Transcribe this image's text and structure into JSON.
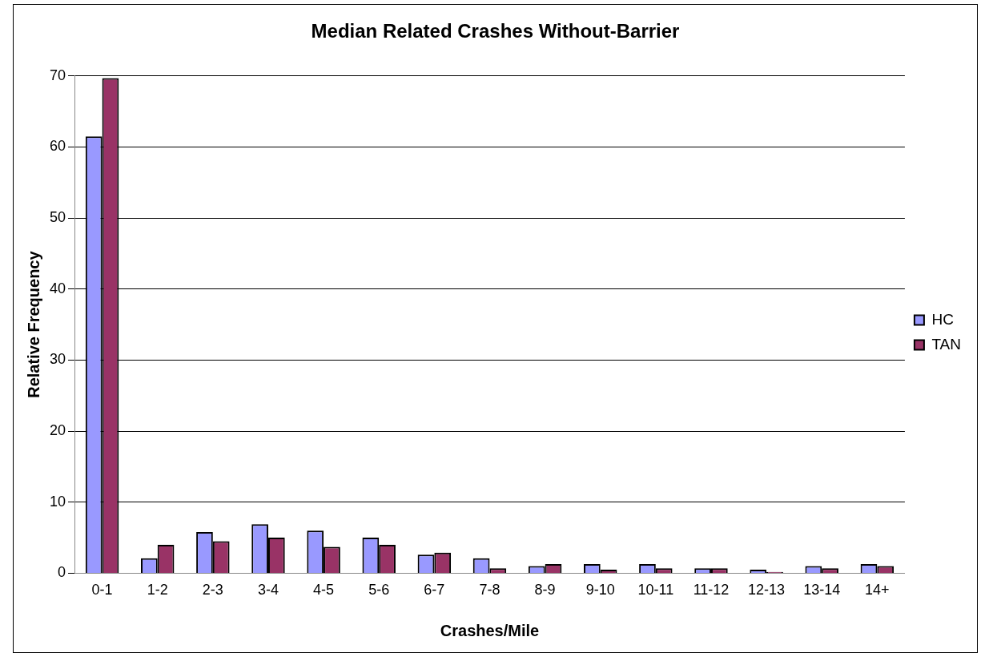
{
  "chart_data": {
    "type": "bar",
    "title": "Median Related Crashes Without-Barrier",
    "xlabel": "Crashes/Mile",
    "ylabel": "Relative Frequency",
    "categories": [
      "0-1",
      "1-2",
      "2-3",
      "3-4",
      "4-5",
      "5-6",
      "6-7",
      "7-8",
      "8-9",
      "9-10",
      "10-11",
      "11-12",
      "12-13",
      "13-14",
      "14+"
    ],
    "series": [
      {
        "name": "HC",
        "color": "#9999ff",
        "values": [
          61.5,
          2.1,
          5.8,
          6.9,
          6.0,
          5.0,
          2.6,
          2.1,
          1.0,
          1.3,
          1.3,
          0.7,
          0.5,
          1.0,
          1.3
        ]
      },
      {
        "name": "TAN",
        "color": "#993366",
        "values": [
          69.7,
          4.0,
          4.5,
          5.0,
          3.7,
          4.0,
          2.9,
          0.7,
          1.3,
          0.5,
          0.7,
          0.7,
          0.2,
          0.7,
          1.0
        ]
      }
    ],
    "ylim": [
      0,
      70
    ],
    "yticks": [
      0,
      10,
      20,
      30,
      40,
      50,
      60,
      70
    ],
    "grid": "y",
    "legend": "right"
  }
}
